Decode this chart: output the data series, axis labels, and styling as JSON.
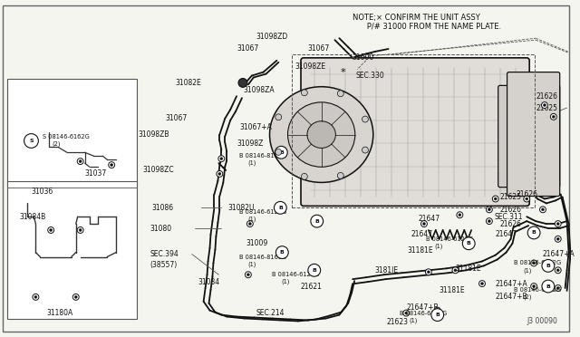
{
  "bg_color": "#f5f5f0",
  "line_color": "#111111",
  "note_line1": "NOTE;× CONFIRM THE UNIT ASSY",
  "note_line2": "      P/# 31000 FROM THE NAME PLATE.",
  "ref_code": "J3 00090",
  "border_color": "#888888"
}
